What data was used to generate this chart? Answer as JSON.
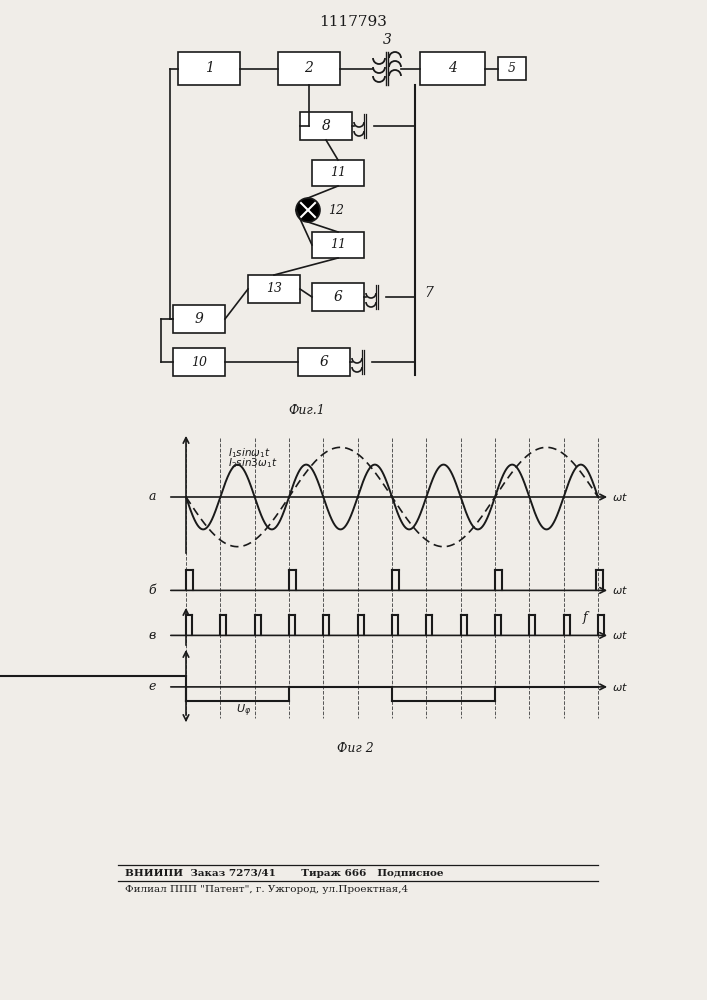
{
  "title": "1117793",
  "fig_caption1": "Фиг.1",
  "fig_caption2": "Фиг 2",
  "footer_line1": "ВНИИПИ  Заказ 7273/41       Тираж 666   Подписное",
  "footer_line2": "Филиал ППП \"Патент\", г. Ужгород, ул.Проектная,4",
  "label_a": "а",
  "label_b": "б",
  "label_v": "в",
  "label_g": "е",
  "bg_color": "#f0ede8",
  "line_color": "#1a1a1a"
}
